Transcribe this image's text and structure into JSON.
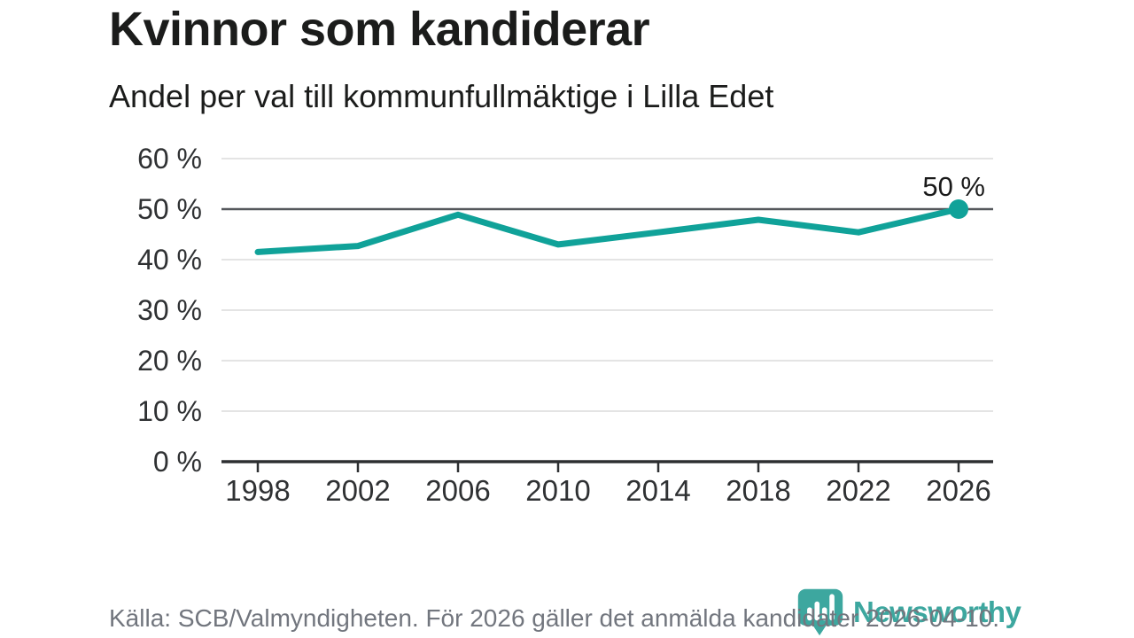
{
  "header": {
    "title": "Kvinnor som kandiderar",
    "subtitle": "Andel per val till kommunfullmäktige i Lilla Edet"
  },
  "footer": {
    "source": "Källa: SCB/Valmyndigheten. För 2026 gäller det anmälda kandidater 2026-04-10.",
    "brand": "Newsworthy"
  },
  "colors": {
    "line": "#10a299",
    "dot": "#10a299",
    "grid": "#dcdcdc",
    "reference_line": "#55585c",
    "axis": "#2d2f31",
    "tick_label": "#2f3133",
    "annotation": "#1a1a1a",
    "footer_text": "#72767e",
    "brand_teal": "#3da79f"
  },
  "chart_data": {
    "type": "line",
    "title": "Kvinnor som kandiderar",
    "subtitle": "Andel per val till kommunfullmäktige i Lilla Edet",
    "x": [
      1998,
      2002,
      2006,
      2010,
      2014,
      2018,
      2022,
      2026
    ],
    "values": [
      41.5,
      42.7,
      48.9,
      43.0,
      45.4,
      47.9,
      45.4,
      50.0
    ],
    "unit": "%",
    "ylim": [
      0,
      60
    ],
    "yticks": [
      0,
      10,
      20,
      30,
      40,
      50,
      60
    ],
    "ytick_suffix": " %",
    "reference_line": 50,
    "last_point_label": "50 %",
    "grid": true,
    "legend": false,
    "xlabel": "",
    "ylabel": ""
  }
}
